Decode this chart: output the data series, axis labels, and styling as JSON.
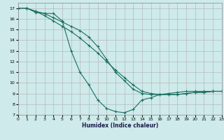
{
  "background_color": "#ceeaea",
  "grid_color": "#b8b8b8",
  "line_color": "#1a7060",
  "xlabel": "Humidex (Indice chaleur)",
  "xlim": [
    0,
    23
  ],
  "ylim": [
    7,
    17.5
  ],
  "yticks": [
    7,
    8,
    9,
    10,
    11,
    12,
    13,
    14,
    15,
    16,
    17
  ],
  "xticks": [
    0,
    1,
    2,
    3,
    4,
    5,
    6,
    7,
    8,
    9,
    10,
    11,
    12,
    13,
    14,
    15,
    16,
    17,
    18,
    19,
    20,
    21,
    22,
    23
  ],
  "series1_x": [
    0,
    1,
    2,
    3,
    4,
    5,
    6,
    7,
    8,
    9,
    10,
    11,
    12,
    13,
    14,
    15,
    16,
    17,
    18,
    19,
    20,
    21,
    22,
    23
  ],
  "series1_y": [
    17.0,
    17.0,
    16.7,
    16.3,
    15.8,
    15.3,
    14.8,
    14.2,
    13.5,
    12.8,
    12.0,
    11.2,
    10.5,
    9.8,
    9.2,
    9.0,
    8.9,
    8.9,
    8.9,
    9.0,
    9.1,
    9.1,
    9.2,
    9.2
  ],
  "series2_x": [
    0,
    1,
    2,
    3,
    4,
    5,
    6,
    7,
    8,
    9,
    10,
    11,
    12,
    13,
    14,
    15,
    16,
    17,
    18,
    19,
    20,
    21,
    22,
    23
  ],
  "series2_y": [
    17.0,
    17.0,
    16.6,
    16.5,
    16.1,
    15.7,
    15.3,
    14.9,
    14.3,
    13.4,
    12.2,
    11.0,
    10.2,
    9.4,
    9.0,
    8.9,
    8.9,
    8.9,
    8.9,
    9.0,
    9.1,
    9.1,
    9.2,
    9.2
  ],
  "series3_x": [
    0,
    1,
    2,
    3,
    4,
    5,
    6,
    7,
    8,
    9,
    10,
    11,
    12,
    13,
    14,
    15,
    16,
    17,
    18,
    19,
    20,
    21,
    22,
    23
  ],
  "series3_y": [
    17.0,
    17.0,
    16.7,
    16.5,
    16.5,
    15.8,
    13.0,
    11.0,
    9.8,
    8.4,
    7.6,
    7.3,
    7.2,
    7.5,
    8.4,
    8.6,
    8.9,
    9.0,
    9.1,
    9.2,
    9.2,
    9.2,
    9.2,
    9.2
  ]
}
